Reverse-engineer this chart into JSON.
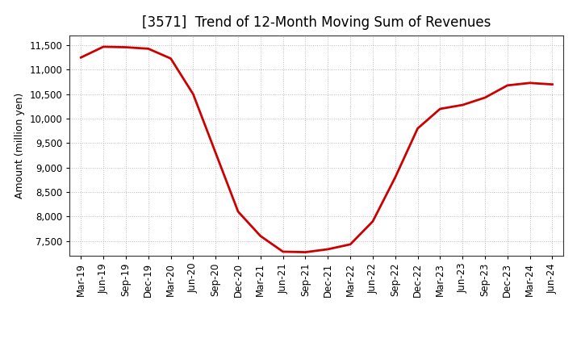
{
  "title": "[3571]  Trend of 12-Month Moving Sum of Revenues",
  "ylabel": "Amount (million yen)",
  "line_color": "#cc0000",
  "background_color": "#ffffff",
  "grid_color": "#bbbbbb",
  "ylim": [
    7200,
    11700
  ],
  "yticks": [
    7500,
    8000,
    8500,
    9000,
    9500,
    10000,
    10500,
    11000,
    11500
  ],
  "x_labels": [
    "Mar-19",
    "Jun-19",
    "Sep-19",
    "Dec-19",
    "Mar-20",
    "Jun-20",
    "Sep-20",
    "Dec-20",
    "Mar-21",
    "Jun-21",
    "Sep-21",
    "Dec-21",
    "Mar-22",
    "Jun-22",
    "Sep-22",
    "Dec-22",
    "Mar-23",
    "Jun-23",
    "Sep-23",
    "Dec-23",
    "Mar-24",
    "Jun-24"
  ],
  "values": [
    11250,
    11470,
    11460,
    11430,
    11230,
    10500,
    9300,
    8100,
    7600,
    7280,
    7270,
    7330,
    7430,
    7900,
    8800,
    9800,
    10200,
    10280,
    10430,
    10680,
    10730,
    10700
  ],
  "title_fontsize": 12,
  "ylabel_fontsize": 9,
  "tick_fontsize": 8.5,
  "linewidth": 2.0,
  "figsize": [
    7.2,
    4.4
  ],
  "dpi": 100
}
